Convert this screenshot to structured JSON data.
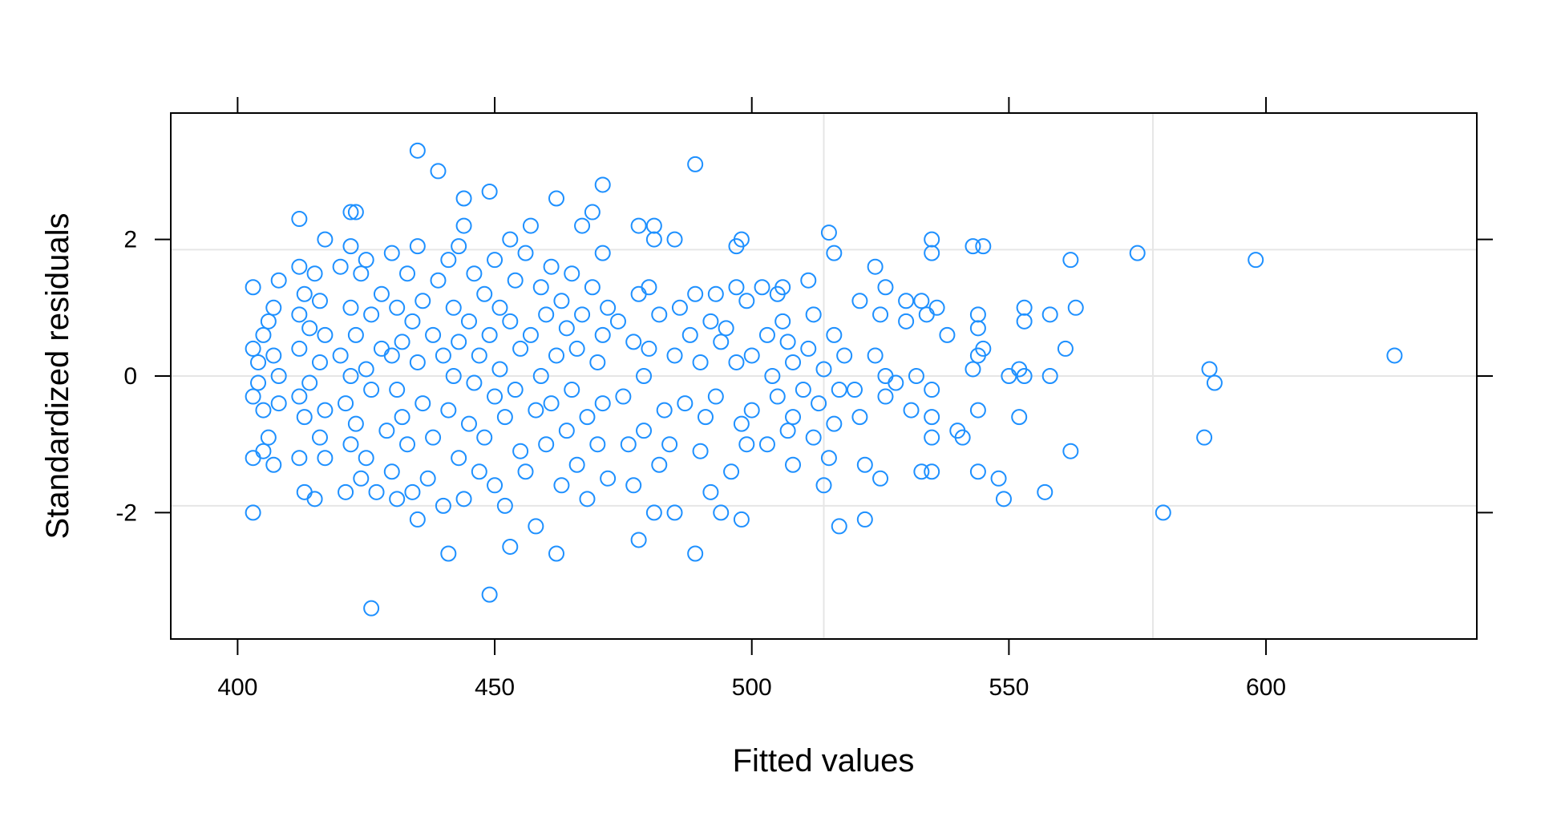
{
  "chart_data": {
    "type": "scatter",
    "title": "",
    "xlabel": "Fitted values",
    "ylabel": "Standardized residuals",
    "xlim": [
      387,
      641
    ],
    "ylim": [
      -3.85,
      3.85
    ],
    "x_ticks": [
      400,
      450,
      500,
      550,
      600
    ],
    "y_ticks": [
      -2,
      0,
      2
    ],
    "x_tick_labels": [
      "400",
      "450",
      "500",
      "550",
      "600"
    ],
    "y_tick_labels": [
      "-2",
      "0",
      "2"
    ],
    "x_gridlines": [
      514,
      578
    ],
    "y_gridlines": [
      -1.9,
      0,
      1.85
    ],
    "grid": true,
    "marker": "open-circle",
    "colors": {
      "points": "#1E90FF",
      "grid": "#E6E6E6",
      "frame": "#000000"
    },
    "points": [
      [
        403,
        1.3
      ],
      [
        403,
        0.4
      ],
      [
        403,
        -0.3
      ],
      [
        403,
        -1.2
      ],
      [
        403,
        -2.0
      ],
      [
        404,
        0.2
      ],
      [
        404,
        -0.1
      ],
      [
        405,
        0.6
      ],
      [
        405,
        -0.5
      ],
      [
        405,
        -1.1
      ],
      [
        406,
        0.8
      ],
      [
        406,
        -0.9
      ],
      [
        407,
        0.3
      ],
      [
        407,
        -1.3
      ],
      [
        407,
        1.0
      ],
      [
        408,
        1.4
      ],
      [
        408,
        -0.4
      ],
      [
        408,
        0.0
      ],
      [
        412,
        2.3
      ],
      [
        412,
        1.6
      ],
      [
        412,
        0.9
      ],
      [
        412,
        0.4
      ],
      [
        412,
        -0.3
      ],
      [
        412,
        -1.2
      ],
      [
        413,
        1.2
      ],
      [
        413,
        -0.6
      ],
      [
        413,
        -1.7
      ],
      [
        414,
        0.7
      ],
      [
        414,
        -0.1
      ],
      [
        415,
        1.5
      ],
      [
        415,
        -1.8
      ],
      [
        416,
        1.1
      ],
      [
        416,
        0.2
      ],
      [
        416,
        -0.9
      ],
      [
        417,
        2.0
      ],
      [
        417,
        0.6
      ],
      [
        417,
        -0.5
      ],
      [
        417,
        -1.2
      ],
      [
        420,
        1.6
      ],
      [
        420,
        0.3
      ],
      [
        421,
        -0.4
      ],
      [
        421,
        -1.7
      ],
      [
        422,
        2.4
      ],
      [
        422,
        1.9
      ],
      [
        422,
        1.0
      ],
      [
        422,
        0.0
      ],
      [
        422,
        -1.0
      ],
      [
        423,
        2.4
      ],
      [
        423,
        0.6
      ],
      [
        423,
        -0.7
      ],
      [
        424,
        1.5
      ],
      [
        424,
        -1.5
      ],
      [
        425,
        1.7
      ],
      [
        425,
        0.1
      ],
      [
        425,
        -1.2
      ],
      [
        426,
        0.9
      ],
      [
        426,
        -3.4
      ],
      [
        426,
        -0.2
      ],
      [
        427,
        -1.7
      ],
      [
        428,
        1.2
      ],
      [
        428,
        0.4
      ],
      [
        429,
        -0.8
      ],
      [
        430,
        1.8
      ],
      [
        430,
        0.3
      ],
      [
        430,
        -1.4
      ],
      [
        431,
        1.0
      ],
      [
        431,
        -0.2
      ],
      [
        431,
        -1.8
      ],
      [
        432,
        0.5
      ],
      [
        432,
        -0.6
      ],
      [
        433,
        1.5
      ],
      [
        433,
        -1.0
      ],
      [
        434,
        0.8
      ],
      [
        434,
        -1.7
      ],
      [
        435,
        3.3
      ],
      [
        435,
        1.9
      ],
      [
        435,
        0.2
      ],
      [
        435,
        -2.1
      ],
      [
        436,
        -0.4
      ],
      [
        436,
        1.1
      ],
      [
        437,
        -1.5
      ],
      [
        438,
        0.6
      ],
      [
        438,
        -0.9
      ],
      [
        439,
        3.0
      ],
      [
        439,
        1.4
      ],
      [
        440,
        0.3
      ],
      [
        440,
        -1.9
      ],
      [
        441,
        1.7
      ],
      [
        441,
        -2.6
      ],
      [
        441,
        -0.5
      ],
      [
        442,
        1.0
      ],
      [
        442,
        0.0
      ],
      [
        443,
        1.9
      ],
      [
        443,
        -1.2
      ],
      [
        443,
        0.5
      ],
      [
        444,
        2.2
      ],
      [
        444,
        -1.8
      ],
      [
        444,
        2.6
      ],
      [
        445,
        0.8
      ],
      [
        445,
        -0.7
      ],
      [
        446,
        1.5
      ],
      [
        446,
        -0.1
      ],
      [
        447,
        0.3
      ],
      [
        447,
        -1.4
      ],
      [
        448,
        1.2
      ],
      [
        448,
        -0.9
      ],
      [
        449,
        2.7
      ],
      [
        449,
        -3.2
      ],
      [
        449,
        0.6
      ],
      [
        450,
        1.7
      ],
      [
        450,
        -0.3
      ],
      [
        450,
        -1.6
      ],
      [
        451,
        1.0
      ],
      [
        451,
        0.1
      ],
      [
        452,
        -0.6
      ],
      [
        452,
        -1.9
      ],
      [
        453,
        2.0
      ],
      [
        453,
        0.8
      ],
      [
        453,
        -2.5
      ],
      [
        454,
        1.4
      ],
      [
        454,
        -0.2
      ],
      [
        455,
        -1.1
      ],
      [
        455,
        0.4
      ],
      [
        456,
        1.8
      ],
      [
        456,
        -1.4
      ],
      [
        457,
        2.2
      ],
      [
        457,
        0.6
      ],
      [
        458,
        -0.5
      ],
      [
        458,
        -2.2
      ],
      [
        459,
        1.3
      ],
      [
        459,
        0.0
      ],
      [
        460,
        0.9
      ],
      [
        460,
        -1.0
      ],
      [
        461,
        1.6
      ],
      [
        461,
        -0.4
      ],
      [
        462,
        2.6
      ],
      [
        462,
        -2.6
      ],
      [
        462,
        0.3
      ],
      [
        463,
        1.1
      ],
      [
        463,
        -1.6
      ],
      [
        464,
        0.7
      ],
      [
        464,
        -0.8
      ],
      [
        465,
        1.5
      ],
      [
        465,
        -0.2
      ],
      [
        466,
        0.4
      ],
      [
        466,
        -1.3
      ],
      [
        467,
        2.2
      ],
      [
        467,
        0.9
      ],
      [
        468,
        -0.6
      ],
      [
        468,
        -1.8
      ],
      [
        469,
        2.4
      ],
      [
        469,
        1.3
      ],
      [
        470,
        0.2
      ],
      [
        470,
        -1.0
      ],
      [
        471,
        2.8
      ],
      [
        471,
        1.8
      ],
      [
        471,
        0.6
      ],
      [
        471,
        -0.4
      ],
      [
        472,
        -1.5
      ],
      [
        472,
        1.0
      ],
      [
        474,
        0.8
      ],
      [
        475,
        -0.3
      ],
      [
        476,
        -1.0
      ],
      [
        477,
        0.5
      ],
      [
        477,
        -1.6
      ],
      [
        478,
        2.2
      ],
      [
        478,
        1.2
      ],
      [
        478,
        -2.4
      ],
      [
        479,
        0.0
      ],
      [
        479,
        -0.8
      ],
      [
        480,
        1.3
      ],
      [
        480,
        0.4
      ],
      [
        481,
        2.2
      ],
      [
        481,
        2.0
      ],
      [
        481,
        -2.0
      ],
      [
        482,
        0.9
      ],
      [
        482,
        -1.3
      ],
      [
        483,
        -0.5
      ],
      [
        484,
        -1.0
      ],
      [
        485,
        2.0
      ],
      [
        485,
        0.3
      ],
      [
        485,
        -2.0
      ],
      [
        486,
        1.0
      ],
      [
        487,
        -0.4
      ],
      [
        488,
        0.6
      ],
      [
        489,
        3.1
      ],
      [
        489,
        -2.6
      ],
      [
        489,
        1.2
      ],
      [
        490,
        0.2
      ],
      [
        490,
        -1.1
      ],
      [
        491,
        -0.6
      ],
      [
        492,
        0.8
      ],
      [
        492,
        -1.7
      ],
      [
        493,
        1.2
      ],
      [
        493,
        -0.3
      ],
      [
        494,
        0.5
      ],
      [
        494,
        -2.0
      ],
      [
        495,
        0.7
      ],
      [
        496,
        -1.4
      ],
      [
        497,
        1.9
      ],
      [
        497,
        1.3
      ],
      [
        497,
        0.2
      ],
      [
        498,
        2.0
      ],
      [
        498,
        -0.7
      ],
      [
        498,
        -2.1
      ],
      [
        499,
        1.1
      ],
      [
        499,
        -1.0
      ],
      [
        500,
        0.3
      ],
      [
        500,
        -0.5
      ],
      [
        502,
        1.3
      ],
      [
        503,
        0.6
      ],
      [
        503,
        -1.0
      ],
      [
        504,
        0.0
      ],
      [
        505,
        1.2
      ],
      [
        505,
        -0.3
      ],
      [
        506,
        0.8
      ],
      [
        506,
        1.3
      ],
      [
        507,
        -0.8
      ],
      [
        507,
        0.5
      ],
      [
        508,
        -1.3
      ],
      [
        508,
        0.2
      ],
      [
        508,
        -0.6
      ],
      [
        510,
        -0.2
      ],
      [
        511,
        1.4
      ],
      [
        511,
        0.4
      ],
      [
        512,
        -0.9
      ],
      [
        512,
        0.9
      ],
      [
        513,
        -0.4
      ],
      [
        514,
        -1.6
      ],
      [
        514,
        0.1
      ],
      [
        515,
        2.1
      ],
      [
        515,
        -1.2
      ],
      [
        516,
        1.8
      ],
      [
        516,
        -0.7
      ],
      [
        516,
        0.6
      ],
      [
        517,
        -2.2
      ],
      [
        517,
        -0.2
      ],
      [
        518,
        0.3
      ],
      [
        520,
        -0.2
      ],
      [
        521,
        1.1
      ],
      [
        521,
        -0.6
      ],
      [
        522,
        -2.1
      ],
      [
        522,
        -1.3
      ],
      [
        524,
        1.6
      ],
      [
        524,
        0.3
      ],
      [
        525,
        -1.5
      ],
      [
        525,
        0.9
      ],
      [
        526,
        1.3
      ],
      [
        526,
        -0.3
      ],
      [
        526,
        0.0
      ],
      [
        528,
        -0.1
      ],
      [
        530,
        1.1
      ],
      [
        530,
        0.8
      ],
      [
        531,
        -0.5
      ],
      [
        532,
        0.0
      ],
      [
        533,
        -1.4
      ],
      [
        533,
        1.1
      ],
      [
        534,
        0.9
      ],
      [
        535,
        2.0
      ],
      [
        535,
        1.8
      ],
      [
        535,
        -0.9
      ],
      [
        535,
        -0.2
      ],
      [
        535,
        -0.6
      ],
      [
        535,
        -1.4
      ],
      [
        536,
        1.0
      ],
      [
        538,
        0.6
      ],
      [
        540,
        -0.8
      ],
      [
        541,
        -0.9
      ],
      [
        543,
        1.9
      ],
      [
        543,
        0.1
      ],
      [
        544,
        -1.4
      ],
      [
        544,
        0.9
      ],
      [
        544,
        0.3
      ],
      [
        544,
        -0.5
      ],
      [
        544,
        0.7
      ],
      [
        545,
        1.9
      ],
      [
        545,
        0.4
      ],
      [
        548,
        -1.5
      ],
      [
        549,
        -1.8
      ],
      [
        550,
        0.0
      ],
      [
        552,
        0.1
      ],
      [
        552,
        -0.6
      ],
      [
        553,
        1.0
      ],
      [
        553,
        0.8
      ],
      [
        553,
        0.0
      ],
      [
        557,
        -1.7
      ],
      [
        558,
        0.9
      ],
      [
        558,
        0.0
      ],
      [
        561,
        0.4
      ],
      [
        562,
        1.7
      ],
      [
        562,
        -1.1
      ],
      [
        563,
        1.0
      ],
      [
        575,
        1.8
      ],
      [
        580,
        -2.0
      ],
      [
        588,
        -0.9
      ],
      [
        589,
        0.1
      ],
      [
        590,
        -0.1
      ],
      [
        598,
        1.7
      ],
      [
        625,
        0.3
      ]
    ]
  }
}
